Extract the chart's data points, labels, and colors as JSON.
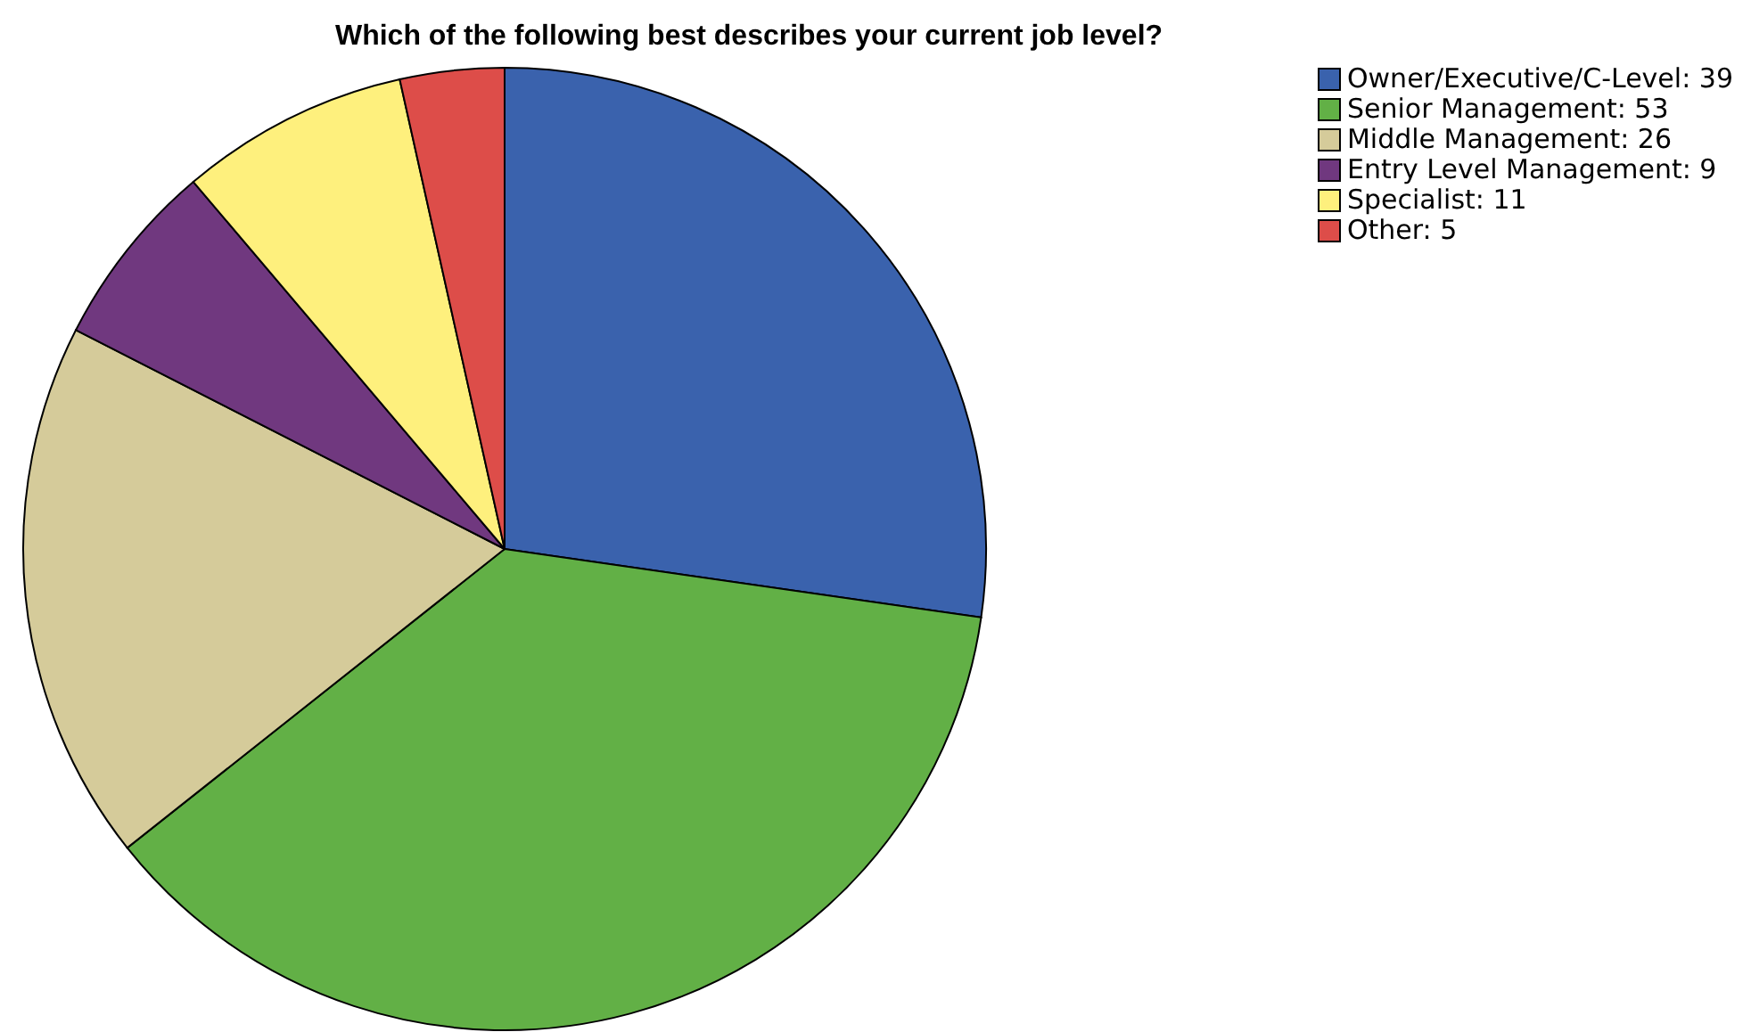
{
  "chart_data": {
    "type": "pie",
    "title": "Which of the following best describes your current job level?",
    "categories": [
      "Owner/Executive/C-Level: 39",
      "Senior Management: 53",
      "Middle Management: 26",
      "Entry Level Management: 9",
      "Specialist: 11",
      "Other: 5"
    ],
    "values": [
      39,
      53,
      26,
      9,
      11,
      5
    ],
    "colors": [
      "#3a62ad",
      "#62b046",
      "#d5cb9a",
      "#70387f",
      "#fef07d",
      "#dd4d49"
    ],
    "legend": "top right"
  }
}
